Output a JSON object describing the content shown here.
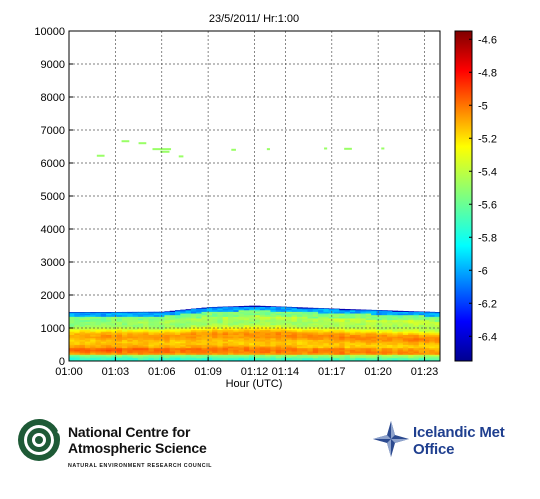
{
  "chart_data": {
    "type": "heatmap",
    "title": "23/5/2011/ Hr:1:00",
    "xlabel": "Hour (UTC)",
    "ylabel": "",
    "x_range": [
      "01:00",
      "01:24"
    ],
    "ylim": [
      0,
      10000
    ],
    "y_ticks": [
      0,
      1000,
      2000,
      3000,
      4000,
      5000,
      6000,
      7000,
      8000,
      9000,
      10000
    ],
    "x_ticks": [
      "01:00",
      "01:03",
      "01:06",
      "01:09",
      "01:12",
      "01:14",
      "01:17",
      "01:20",
      "01:23"
    ],
    "grid": true,
    "colorbar": {
      "range": [
        -6.55,
        -4.55
      ],
      "ticks": [
        "-4.6",
        "-4.8",
        "-5",
        "-5.2",
        "-5.4",
        "-5.6",
        "-5.8",
        "-6",
        "-6.2",
        "-6.4"
      ],
      "colormap": "jet"
    },
    "boundary_layer_top": [
      {
        "time": "01:00",
        "height": 1450
      },
      {
        "time": "01:06",
        "height": 1460
      },
      {
        "time": "01:09",
        "height": 1600
      },
      {
        "time": "01:12",
        "height": 1650
      },
      {
        "time": "01:17",
        "height": 1560
      },
      {
        "time": "01:24",
        "height": 1450
      }
    ],
    "cloud_layer": {
      "height": 6400,
      "value": -5.5
    }
  },
  "logos": {
    "ncas": {
      "line1": "National Centre for",
      "line2": "Atmospheric Science",
      "line3": "NATURAL ENVIRONMENT RESEARCH COUNCIL"
    },
    "imo": {
      "line1": "Icelandic Met",
      "line2": "Office"
    }
  }
}
